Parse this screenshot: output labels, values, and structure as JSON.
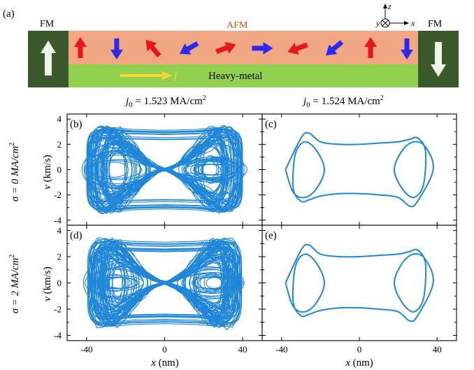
{
  "figure_label": "(a)",
  "schematic": {
    "fm_left": "FM",
    "fm_right": "FM",
    "afm": "AFM",
    "heavy_metal": "Heavy-metal",
    "current_symbol": "j",
    "axes": {
      "z": "z",
      "y": "y",
      "x": "x"
    },
    "colors": {
      "fm": "#3a5a2c",
      "afm": "#f1a783",
      "heavy_metal": "#92d050",
      "current_arrow": "#ffd633",
      "red_spin": "#e8161b",
      "blue_spin": "#2a2af0",
      "afm_label": "#c55a11"
    },
    "spin_angles_deg": [
      90,
      -90,
      130,
      210,
      20,
      0,
      -160,
      220,
      90,
      -90
    ]
  },
  "column_headers": {
    "left": {
      "prefix": "j",
      "sub": "0",
      "mid": " = 1.523 MA/cm",
      "sup": "2"
    },
    "right": {
      "prefix": "j",
      "sub": "0",
      "mid": " = 1.524 MA/cm",
      "sup": "2"
    }
  },
  "row_labels": {
    "top": {
      "prefix": "σ = 0 MA/cm",
      "sup": "2"
    },
    "bottom": {
      "prefix": "σ = 2 MA/cm",
      "sup": "2"
    }
  },
  "xlabel": {
    "var": "x",
    "unit": " (nm)"
  },
  "ylabel": {
    "var": "v",
    "unit": " (km/s)"
  },
  "x_ticks": [
    -40,
    0,
    40
  ],
  "y_ticks": [
    -4,
    -2,
    0,
    2,
    4
  ],
  "chart_data": [
    {
      "panel": "(b)",
      "type": "line",
      "style": "chaotic",
      "j0": "1.523 MA/cm^2",
      "sigma": "0 MA/cm^2",
      "xlim": [
        -50,
        50
      ],
      "ylim": [
        -4.4,
        4.4
      ],
      "x_range": [
        -38,
        40
      ],
      "v_range": [
        -3.9,
        3.9
      ],
      "color": "#1f86d8"
    },
    {
      "panel": "(c)",
      "type": "line",
      "style": "periodic",
      "j0": "1.524 MA/cm^2",
      "sigma": "0 MA/cm^2",
      "xlim": [
        -50,
        50
      ],
      "ylim": [
        -4.4,
        4.4
      ],
      "x": [
        -38,
        -30,
        -26,
        -20,
        -10,
        0,
        10,
        20,
        26,
        30,
        34,
        33,
        28,
        22,
        18,
        22,
        28,
        34,
        38,
        30,
        26,
        20,
        10,
        0,
        -10,
        -20,
        -26,
        -30,
        -34,
        -33,
        -28,
        -22,
        -18,
        -22,
        -28,
        -34,
        -38
      ],
      "y": [
        0,
        2.5,
        2.9,
        2.2,
        2.0,
        2.0,
        2.1,
        2.2,
        2.4,
        2.5,
        1.5,
        -1.2,
        -2.2,
        -1.5,
        0,
        1.5,
        2.2,
        1.8,
        0,
        -2.5,
        -2.9,
        -2.2,
        -2.0,
        -1.9,
        -1.9,
        -2.1,
        -2.4,
        -2.5,
        -1.5,
        1.2,
        2.2,
        1.5,
        0,
        -1.5,
        -2.2,
        -1.8,
        0
      ],
      "color": "#1f86d8"
    },
    {
      "panel": "(d)",
      "type": "line",
      "style": "chaotic",
      "j0": "1.523 MA/cm^2",
      "sigma": "2 MA/cm^2",
      "xlim": [
        -50,
        50
      ],
      "ylim": [
        -4.4,
        4.4
      ],
      "x_range": [
        -38,
        40
      ],
      "v_range": [
        -3.9,
        3.9
      ],
      "color": "#1f86d8"
    },
    {
      "panel": "(e)",
      "type": "line",
      "style": "periodic",
      "j0": "1.524 MA/cm^2",
      "sigma": "2 MA/cm^2",
      "xlim": [
        -50,
        50
      ],
      "ylim": [
        -4.4,
        4.4
      ],
      "x": [
        -38,
        -30,
        -26,
        -20,
        -10,
        0,
        10,
        20,
        26,
        30,
        34,
        33,
        28,
        22,
        18,
        22,
        28,
        34,
        38,
        30,
        26,
        20,
        10,
        0,
        -10,
        -20,
        -26,
        -30,
        -34,
        -33,
        -28,
        -22,
        -18,
        -22,
        -28,
        -34,
        -38
      ],
      "y": [
        0,
        2.5,
        2.9,
        2.2,
        2.0,
        2.0,
        2.1,
        2.2,
        2.4,
        2.5,
        1.5,
        -1.2,
        -2.2,
        -1.5,
        0,
        1.5,
        2.2,
        1.8,
        0,
        -2.5,
        -2.9,
        -2.2,
        -2.0,
        -1.9,
        -1.9,
        -2.1,
        -2.4,
        -2.5,
        -1.5,
        1.2,
        2.2,
        1.5,
        0,
        -1.5,
        -2.2,
        -1.8,
        0
      ],
      "color": "#1f86d8"
    }
  ]
}
